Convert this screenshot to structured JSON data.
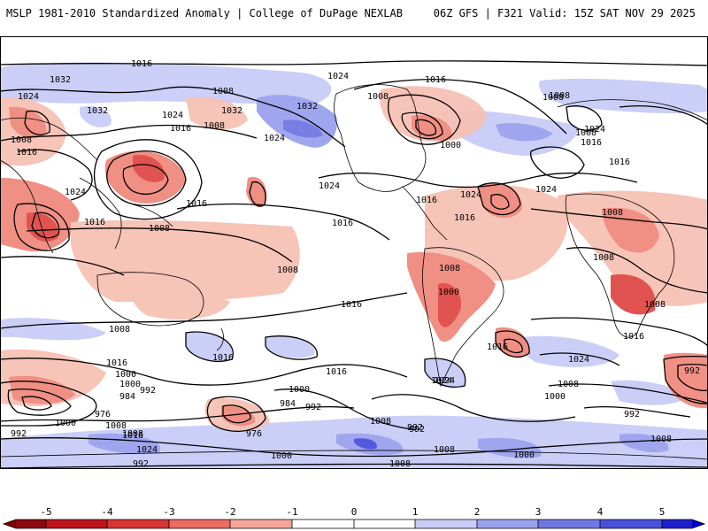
{
  "header": {
    "title_left": "MSLP 1981-2010 Standardized Anomaly | College of DuPage NEXLAB",
    "title_right": "06Z GFS | F321 Valid: 15Z SAT NOV 29 2025"
  },
  "colors": {
    "neg5": "#7f0000",
    "neg4": "#c0141c",
    "neg3": "#e04a47",
    "neg2": "#f08a7e",
    "neg1": "#f7c1b5",
    "zero": "#ffffff",
    "pos1": "#c9ccf7",
    "pos2": "#9aa2ee",
    "pos3": "#6f78e3",
    "pos4": "#4b50db",
    "pos5": "#0000c8"
  },
  "colorbar": {
    "ticks": [
      "-5",
      "-4",
      "-3",
      "-2",
      "-1",
      "0",
      "1",
      "2",
      "3",
      "4",
      "5"
    ]
  },
  "contours": {
    "labels": [
      "1016",
      "1032",
      "1024",
      "1008",
      "1032",
      "1024",
      "1016",
      "1032",
      "1024",
      "1024",
      "1024",
      "1032",
      "1008",
      "1016",
      "1008",
      "1024",
      "1024",
      "1000",
      "1024",
      "1016",
      "1008",
      "1016",
      "1016",
      "1016",
      "1016",
      "1016",
      "1008",
      "1008",
      "1008",
      "1008",
      "1008",
      "1016",
      "1008",
      "1016",
      "1016",
      "1016",
      "1016",
      "1008",
      "1000",
      "1024",
      "1000",
      "984",
      "992",
      "1000",
      "992",
      "984",
      "992",
      "976",
      "976",
      "1008",
      "992",
      "1000",
      "1008",
      "992",
      "1016",
      "1024",
      "1000",
      "1008",
      "1024",
      "1008",
      "1000",
      "1008",
      "992",
      "1008",
      "992",
      "1008",
      "1016",
      "1024",
      "1016",
      "1008",
      "1008",
      "1008",
      "1016",
      "1024",
      "1000",
      "992",
      "1000"
    ]
  }
}
